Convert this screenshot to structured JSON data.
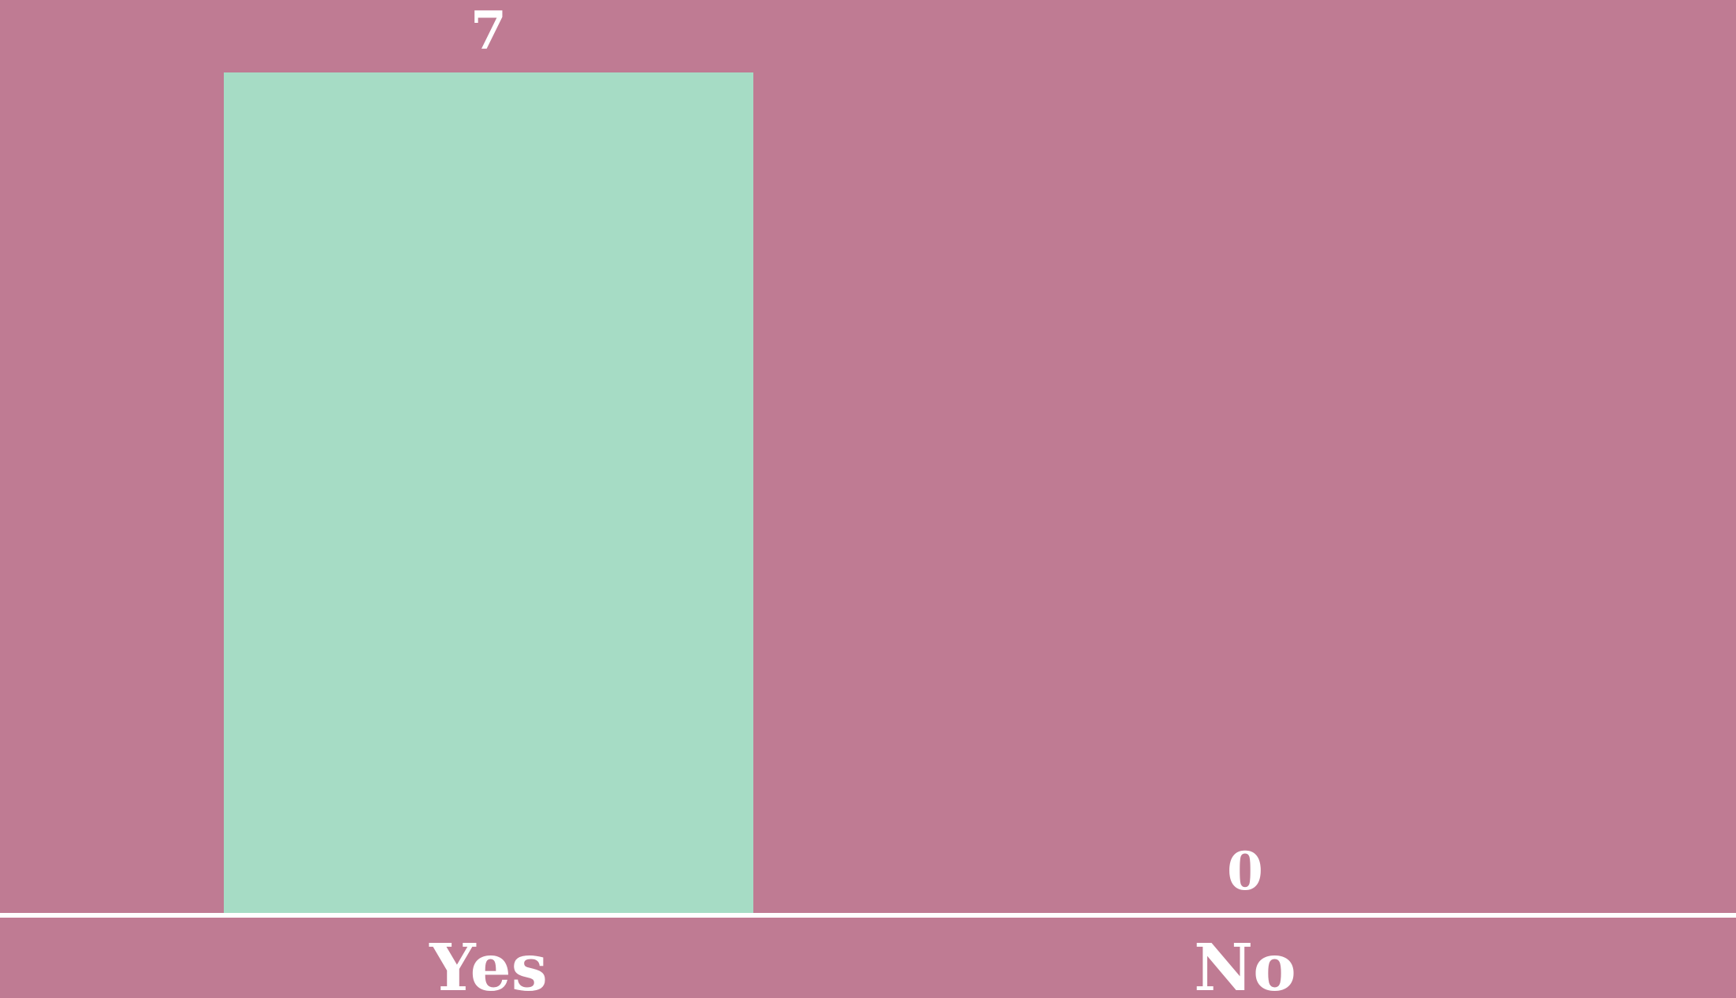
{
  "chart_data": {
    "type": "bar",
    "categories": [
      "Yes",
      "No"
    ],
    "values": [
      7,
      0
    ],
    "ylim": [
      0,
      7
    ],
    "grid": false,
    "legend": "none",
    "colors": {
      "background": "#bf7b93",
      "bar": "#a6dcc5",
      "axis": "#ffffff",
      "text": "#ffffff"
    }
  }
}
